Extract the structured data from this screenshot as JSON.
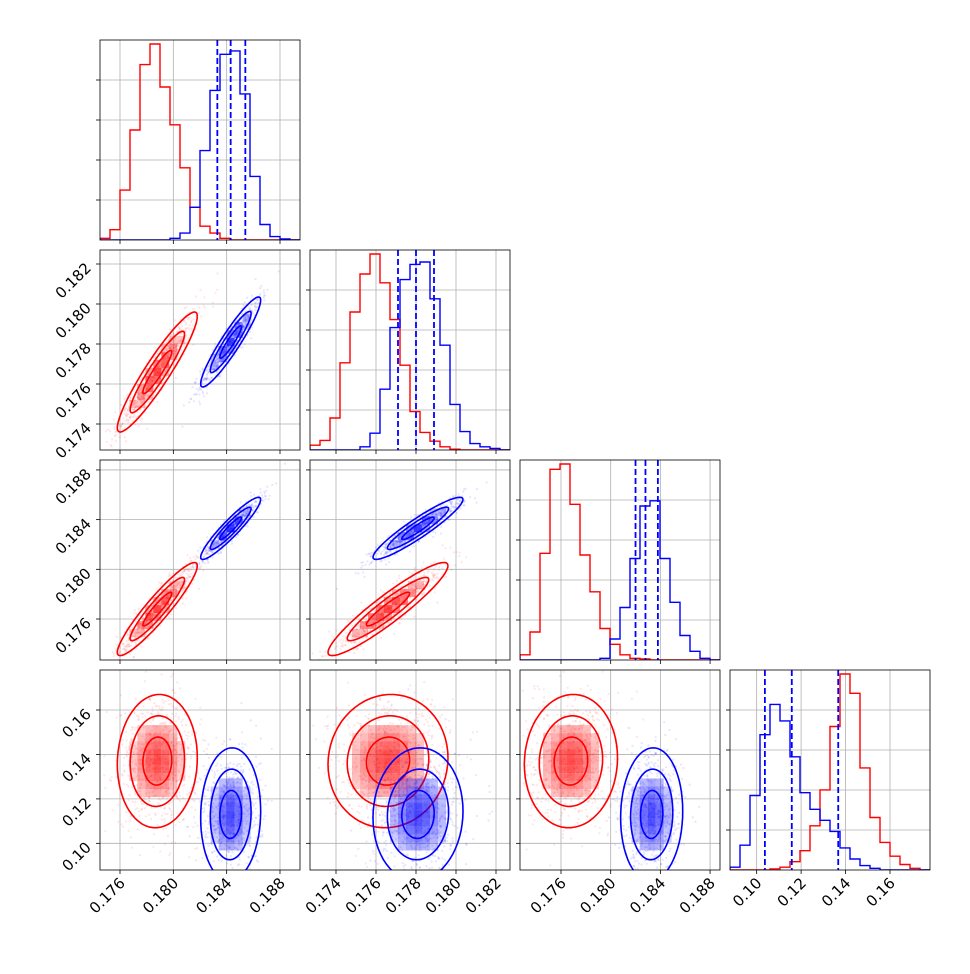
{
  "chart_data": {
    "type": "corner",
    "colors": {
      "red": "#ff0000",
      "blue": "#0000ff",
      "grid": "#b0b0b0"
    },
    "params": [
      {
        "range": [
          0.1745,
          0.1895
        ],
        "ticks": [
          0.176,
          0.18,
          0.184,
          0.188
        ],
        "tick_labels": [
          "0.176",
          "0.180",
          "0.184",
          "0.188"
        ]
      },
      {
        "range": [
          0.1727,
          0.1827
        ],
        "ticks": [
          0.174,
          0.176,
          0.178,
          0.18,
          0.182
        ],
        "tick_labels": [
          "0.174",
          "0.176",
          "0.178",
          "0.180",
          "0.182"
        ]
      },
      {
        "range": [
          0.1727,
          0.1888
        ],
        "ticks": [
          0.176,
          0.18,
          0.184,
          0.188
        ],
        "tick_labels": [
          "0.176",
          "0.180",
          "0.184",
          "0.188"
        ]
      },
      {
        "range": [
          0.088,
          0.178
        ],
        "ticks": [
          0.1,
          0.12,
          0.14,
          0.16
        ],
        "tick_labels": [
          "0.10",
          "0.12",
          "0.14",
          "0.16"
        ]
      }
    ],
    "series": [
      {
        "color": "red",
        "mean": [
          0.1788,
          0.1766,
          0.1768,
          0.137
        ],
        "sd": [
          0.0012,
          0.0012,
          0.0015,
          0.012
        ]
      },
      {
        "color": "blue",
        "mean": [
          0.1843,
          0.1781,
          0.1833,
          0.113
        ],
        "sd": [
          0.0009,
          0.0009,
          0.001,
          0.012
        ]
      }
    ],
    "histograms": [
      {
        "param": 0,
        "red": [
          0.5,
          3.0,
          14.5,
          32.0,
          51.0,
          57.0,
          44.5,
          33.5,
          21.0,
          9.5,
          4.0,
          2.0,
          0.5,
          0,
          0,
          0,
          0,
          0,
          0,
          0
        ],
        "blue": [
          0,
          0,
          0,
          0,
          0,
          0,
          0,
          0.5,
          2.0,
          9.5,
          26.0,
          43.5,
          54.0,
          55.0,
          42.5,
          18.5,
          4.5,
          1.0,
          0.3,
          0
        ],
        "quantiles": [
          0.1833,
          0.1843,
          0.1854
        ]
      },
      {
        "param": 1,
        "red": [
          1.2,
          2.4,
          8.0,
          21.8,
          34.5,
          44.0,
          49.0,
          41.8,
          32.6,
          21.2,
          9.6,
          4.4,
          2.2,
          0.8,
          0.2,
          0,
          0,
          0,
          0,
          0
        ],
        "blue": [
          0,
          0,
          0,
          0,
          0,
          0.8,
          4.2,
          15.2,
          30.6,
          42.6,
          46.4,
          47.0,
          37.8,
          26.2,
          11.4,
          4.6,
          1.6,
          0.8,
          0.4,
          0
        ],
        "quantiles": [
          0.1771,
          0.178,
          0.1789
        ]
      },
      {
        "param": 2,
        "red": [
          1.5,
          8.0,
          30.5,
          54.5,
          56.0,
          44.5,
          30.0,
          19.5,
          9.0,
          4.5,
          1.5,
          0.5,
          0.3,
          0,
          0,
          0,
          0,
          0,
          0,
          0
        ],
        "blue": [
          0,
          0,
          0,
          0,
          0,
          0,
          0,
          0,
          0.5,
          6.0,
          15.0,
          29.0,
          44.0,
          45.5,
          29.0,
          16.5,
          7.0,
          2.5,
          0.5,
          0
        ],
        "quantiles": [
          0.182,
          0.1828,
          0.1838
        ]
      },
      {
        "param": 3,
        "red": [
          0,
          0,
          0,
          0,
          0.2,
          0.5,
          1.5,
          3.5,
          8.0,
          14.5,
          26.0,
          35.5,
          32.0,
          18.5,
          9.5,
          5.0,
          2.5,
          1.0,
          0.3,
          0
        ],
        "blue": [
          0.5,
          4.5,
          13.5,
          24.5,
          30.0,
          27.0,
          20.5,
          14.0,
          11.0,
          9.0,
          7.0,
          4.0,
          2.0,
          0.8,
          0.3,
          0,
          0,
          0,
          0,
          0
        ],
        "quantiles": [
          0.1037,
          0.1158,
          0.1367
        ]
      }
    ],
    "quantile_color": "blue",
    "bins": 20,
    "grid": true
  }
}
